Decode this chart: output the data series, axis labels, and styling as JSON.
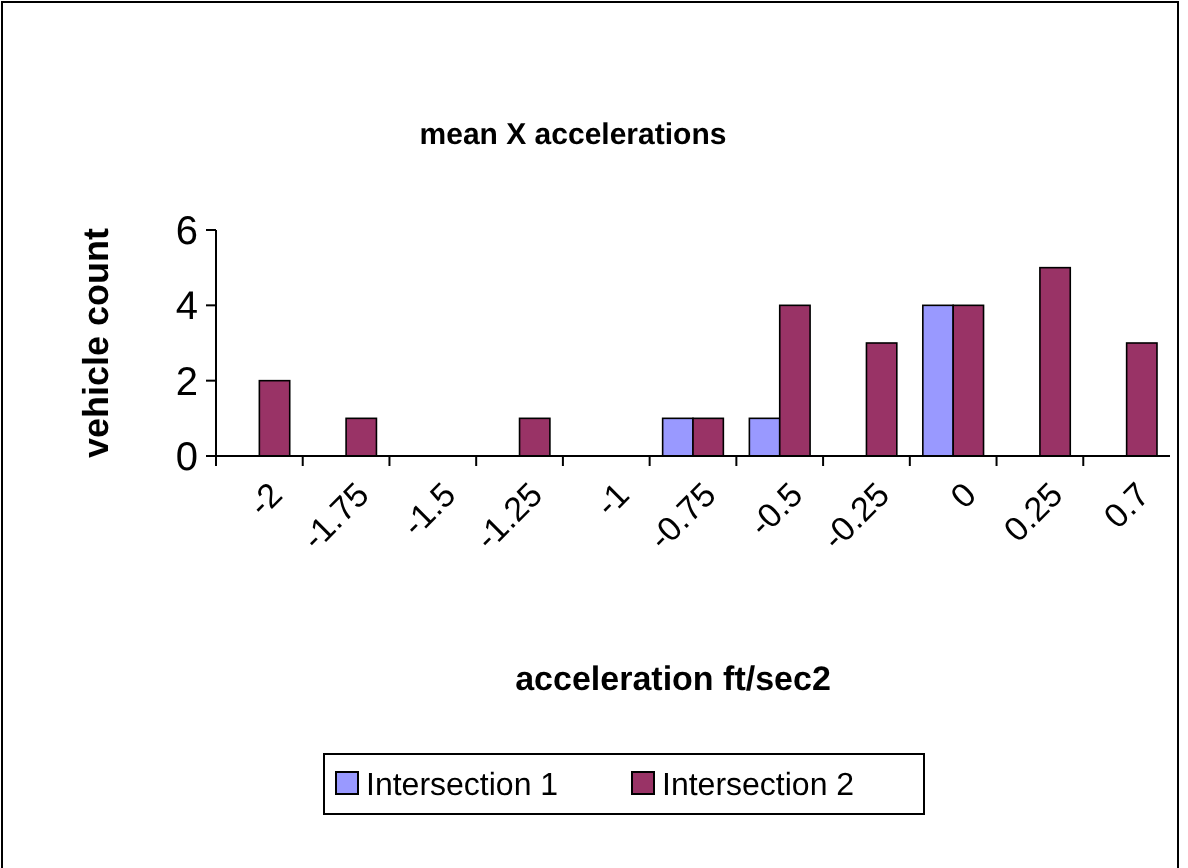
{
  "chart_data": {
    "type": "bar",
    "title": "mean X accelerations",
    "xlabel": "acceleration ft/sec2",
    "ylabel": "vehicle count",
    "categories": [
      "-2",
      "-1.75",
      "-1.5",
      "-1.25",
      "-1",
      "-0.75",
      "-0.5",
      "-0.25",
      "0",
      "0.25",
      "0.7"
    ],
    "series": [
      {
        "name": "Intersection 1",
        "color": "#9999ff",
        "values": [
          0,
          0,
          0,
          0,
          0,
          1,
          1,
          0,
          4,
          0,
          0
        ]
      },
      {
        "name": "Intersection 2",
        "color": "#993366",
        "values": [
          2,
          1,
          0,
          1,
          0,
          1,
          4,
          3,
          4,
          5,
          3
        ]
      }
    ],
    "ylim": [
      0,
      6
    ],
    "yticks": [
      0,
      2,
      4,
      6
    ],
    "grid": false,
    "legend": "bottom"
  }
}
